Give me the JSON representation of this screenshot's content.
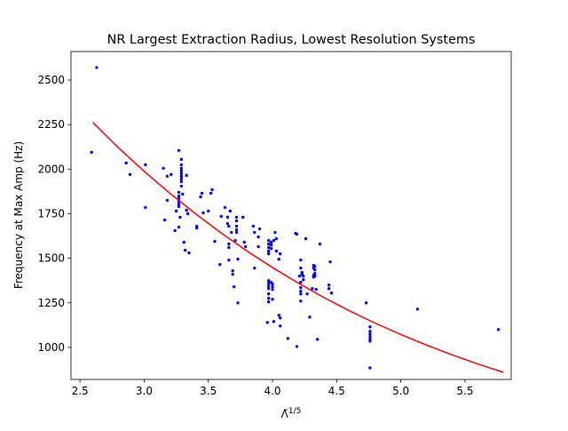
{
  "chart_data": {
    "type": "scatter",
    "title": "NR Largest Extraction Radius, Lowest Resolution Systems",
    "xlabel_base": "Λ̃",
    "xlabel_sup": "1/5",
    "ylabel": "Frequency at Max Amp (Hz)",
    "xlim": [
      2.43,
      5.86
    ],
    "ylim": [
      820,
      2660
    ],
    "xticks": [
      2.5,
      3.0,
      3.5,
      4.0,
      4.5,
      5.0,
      5.5
    ],
    "xtick_labels": [
      "2.5",
      "3.0",
      "3.5",
      "4.0",
      "4.5",
      "5.0",
      "5.5"
    ],
    "yticks": [
      1000,
      1250,
      1500,
      1750,
      2000,
      2250,
      2500
    ],
    "ytick_labels": [
      "1000",
      "1250",
      "1500",
      "1750",
      "2000",
      "2250",
      "2500"
    ],
    "grid": false,
    "colors": {
      "points": "#0000ff",
      "fit": "#ff0000"
    },
    "points": [
      [
        2.59,
        2095
      ],
      [
        2.63,
        2570
      ],
      [
        2.86,
        2035
      ],
      [
        2.89,
        1970
      ],
      [
        3.01,
        2025
      ],
      [
        3.01,
        1785
      ],
      [
        3.15,
        2005
      ],
      [
        3.16,
        1715
      ],
      [
        3.18,
        1960
      ],
      [
        3.18,
        1825
      ],
      [
        3.21,
        1970
      ],
      [
        3.24,
        1655
      ],
      [
        3.25,
        1765
      ],
      [
        3.27,
        2105
      ],
      [
        3.27,
        1870
      ],
      [
        3.27,
        1850
      ],
      [
        3.27,
        1835
      ],
      [
        3.27,
        1820
      ],
      [
        3.27,
        1805
      ],
      [
        3.27,
        1790
      ],
      [
        3.27,
        1675
      ],
      [
        3.28,
        1730
      ],
      [
        3.29,
        2055
      ],
      [
        3.29,
        2025
      ],
      [
        3.29,
        2005
      ],
      [
        3.29,
        1990
      ],
      [
        3.29,
        1975
      ],
      [
        3.29,
        1960
      ],
      [
        3.29,
        1945
      ],
      [
        3.29,
        1930
      ],
      [
        3.29,
        1905
      ],
      [
        3.3,
        1860
      ],
      [
        3.31,
        1590
      ],
      [
        3.32,
        1545
      ],
      [
        3.33,
        1965
      ],
      [
        3.33,
        1770
      ],
      [
        3.34,
        1750
      ],
      [
        3.35,
        1530
      ],
      [
        3.41,
        1680
      ],
      [
        3.41,
        1670
      ],
      [
        3.44,
        1845
      ],
      [
        3.45,
        1865
      ],
      [
        3.46,
        1755
      ],
      [
        3.5,
        1765
      ],
      [
        3.52,
        1865
      ],
      [
        3.53,
        1885
      ],
      [
        3.55,
        1595
      ],
      [
        3.59,
        1465
      ],
      [
        3.6,
        1735
      ],
      [
        3.63,
        1785
      ],
      [
        3.65,
        1730
      ],
      [
        3.65,
        1695
      ],
      [
        3.66,
        1680
      ],
      [
        3.66,
        1580
      ],
      [
        3.66,
        1560
      ],
      [
        3.66,
        1490
      ],
      [
        3.67,
        1765
      ],
      [
        3.68,
        1645
      ],
      [
        3.69,
        1430
      ],
      [
        3.69,
        1410
      ],
      [
        3.7,
        1340
      ],
      [
        3.71,
        1600
      ],
      [
        3.72,
        1730
      ],
      [
        3.72,
        1710
      ],
      [
        3.72,
        1680
      ],
      [
        3.72,
        1660
      ],
      [
        3.72,
        1645
      ],
      [
        3.73,
        1495
      ],
      [
        3.73,
        1250
      ],
      [
        3.77,
        1730
      ],
      [
        3.78,
        1590
      ],
      [
        3.79,
        1565
      ],
      [
        3.85,
        1680
      ],
      [
        3.86,
        1645
      ],
      [
        3.86,
        1445
      ],
      [
        3.89,
        1620
      ],
      [
        3.89,
        1565
      ],
      [
        3.9,
        1665
      ],
      [
        3.96,
        1140
      ],
      [
        3.97,
        1600
      ],
      [
        3.97,
        1580
      ],
      [
        3.97,
        1560
      ],
      [
        3.97,
        1540
      ],
      [
        3.97,
        1525
      ],
      [
        3.97,
        1375
      ],
      [
        3.97,
        1360
      ],
      [
        3.97,
        1345
      ],
      [
        3.97,
        1330
      ],
      [
        3.97,
        1300
      ],
      [
        3.97,
        1275
      ],
      [
        3.97,
        1255
      ],
      [
        3.99,
        1590
      ],
      [
        3.99,
        1575
      ],
      [
        3.99,
        1555
      ],
      [
        3.99,
        1365
      ],
      [
        4.0,
        1355
      ],
      [
        4.0,
        1340
      ],
      [
        4.0,
        1325
      ],
      [
        4.0,
        1270
      ],
      [
        4.01,
        1600
      ],
      [
        4.01,
        1145
      ],
      [
        4.02,
        1645
      ],
      [
        4.03,
        1610
      ],
      [
        4.03,
        1540
      ],
      [
        4.05,
        1495
      ],
      [
        4.05,
        1180
      ],
      [
        4.06,
        1165
      ],
      [
        4.06,
        1120
      ],
      [
        4.06,
        1525
      ],
      [
        4.12,
        1050
      ],
      [
        4.18,
        1640
      ],
      [
        4.19,
        1635
      ],
      [
        4.19,
        1005
      ],
      [
        4.21,
        1400
      ],
      [
        4.22,
        1490
      ],
      [
        4.22,
        1445
      ],
      [
        4.22,
        1365
      ],
      [
        4.22,
        1335
      ],
      [
        4.22,
        1315
      ],
      [
        4.22,
        1300
      ],
      [
        4.22,
        1260
      ],
      [
        4.23,
        1420
      ],
      [
        4.23,
        1410
      ],
      [
        4.24,
        1400
      ],
      [
        4.24,
        1380
      ],
      [
        4.26,
        1610
      ],
      [
        4.27,
        1300
      ],
      [
        4.29,
        1170
      ],
      [
        4.31,
        1330
      ],
      [
        4.32,
        1460
      ],
      [
        4.32,
        1445
      ],
      [
        4.32,
        1405
      ],
      [
        4.32,
        1395
      ],
      [
        4.33,
        1455
      ],
      [
        4.33,
        1435
      ],
      [
        4.33,
        1415
      ],
      [
        4.33,
        1400
      ],
      [
        4.34,
        1325
      ],
      [
        4.35,
        1045
      ],
      [
        4.37,
        1580
      ],
      [
        4.44,
        1350
      ],
      [
        4.44,
        1330
      ],
      [
        4.45,
        1480
      ],
      [
        4.46,
        1305
      ],
      [
        4.73,
        1250
      ],
      [
        4.76,
        1115
      ],
      [
        4.76,
        1090
      ],
      [
        4.76,
        1075
      ],
      [
        4.76,
        1060
      ],
      [
        4.76,
        1045
      ],
      [
        4.76,
        1035
      ],
      [
        4.76,
        885
      ],
      [
        5.13,
        1215
      ],
      [
        5.76,
        1100
      ]
    ],
    "fit": {
      "x": [
        2.6,
        2.8,
        3.0,
        3.2,
        3.4,
        3.6,
        3.8,
        4.0,
        4.2,
        4.4,
        4.6,
        4.8,
        5.0,
        5.2,
        5.4,
        5.6,
        5.8
      ],
      "y": [
        2262,
        2120,
        1988,
        1865,
        1750,
        1642,
        1541,
        1448,
        1361,
        1280,
        1205,
        1136,
        1072,
        1013,
        958,
        907,
        860
      ]
    }
  }
}
